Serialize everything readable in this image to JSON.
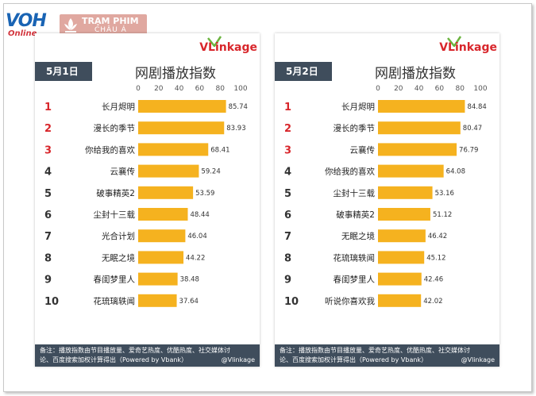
{
  "header": {
    "voh": "VOH",
    "voh_sub": "Online",
    "tram_line1": "TRẠM PHIM",
    "tram_line2": "CHÂU Á"
  },
  "brand": "VLinkage",
  "panels": [
    {
      "date": "5月1日",
      "title": "网剧播放指数",
      "note_line1": "备注：播放指数由节目播放量、爱奇艺热度、优酷热度、社交媒体讨",
      "note_line2": "论、百度搜索加权计算得出（Powered by Vbank）",
      "watermark": "@Vlinkage"
    },
    {
      "date": "5月2日",
      "title": "网剧播放指数",
      "note_line1": "备注：播放指数由节目播放量、爱奇艺热度、优酷热度、社交媒体讨",
      "note_line2": "论、百度搜索加权计算得出（Powered by Vbank）",
      "watermark": "@Vlinkage"
    }
  ],
  "chart_data": [
    {
      "type": "bar",
      "orientation": "horizontal",
      "title": "网剧播放指数",
      "ranks": [
        "1",
        "2",
        "3",
        "4",
        "5",
        "6",
        "7",
        "8",
        "9",
        "10"
      ],
      "categories": [
        "长月烬明",
        "漫长的季节",
        "你给我的喜欢",
        "云襄传",
        "破事精英2",
        "尘封十三载",
        "光合计划",
        "无眠之境",
        "春闺梦里人",
        "花琉璃轶闻"
      ],
      "values": [
        85.74,
        83.93,
        68.41,
        59.24,
        53.59,
        48.44,
        46.04,
        44.22,
        38.48,
        37.64
      ],
      "value_labels": [
        "85.74",
        "83.93",
        "68.41",
        "59.24",
        "53.59",
        "48.44",
        "46.04",
        "44.22",
        "38.48",
        "37.64"
      ],
      "xlim": [
        0,
        100
      ],
      "xticks": [
        "0",
        "20",
        "40",
        "60",
        "80",
        "100"
      ],
      "bar_color": "#f5b21f",
      "rank_colors": [
        "#d8262b",
        "#d8262b",
        "#d8262b",
        "#333333",
        "#333333",
        "#333333",
        "#333333",
        "#333333",
        "#333333",
        "#333333"
      ]
    },
    {
      "type": "bar",
      "orientation": "horizontal",
      "title": "网剧播放指数",
      "ranks": [
        "1",
        "2",
        "3",
        "4",
        "5",
        "6",
        "7",
        "8",
        "9",
        "10"
      ],
      "categories": [
        "长月烬明",
        "漫长的季节",
        "云襄传",
        "你给我的喜欢",
        "尘封十三载",
        "破事精英2",
        "无眠之境",
        "花琉璃轶闻",
        "春闺梦里人",
        "听说你喜欢我"
      ],
      "values": [
        84.84,
        80.47,
        76.79,
        64.08,
        53.16,
        51.12,
        46.42,
        45.12,
        42.46,
        42.02
      ],
      "value_labels": [
        "84.84",
        "80.47",
        "76.79",
        "64.08",
        "53.16",
        "51.12",
        "46.42",
        "45.12",
        "42.46",
        "42.02"
      ],
      "xlim": [
        0,
        100
      ],
      "xticks": [
        "0",
        "20",
        "40",
        "60",
        "80",
        "100"
      ],
      "bar_color": "#f5b21f",
      "rank_colors": [
        "#d8262b",
        "#d8262b",
        "#d8262b",
        "#333333",
        "#333333",
        "#333333",
        "#333333",
        "#333333",
        "#333333",
        "#333333"
      ]
    }
  ]
}
